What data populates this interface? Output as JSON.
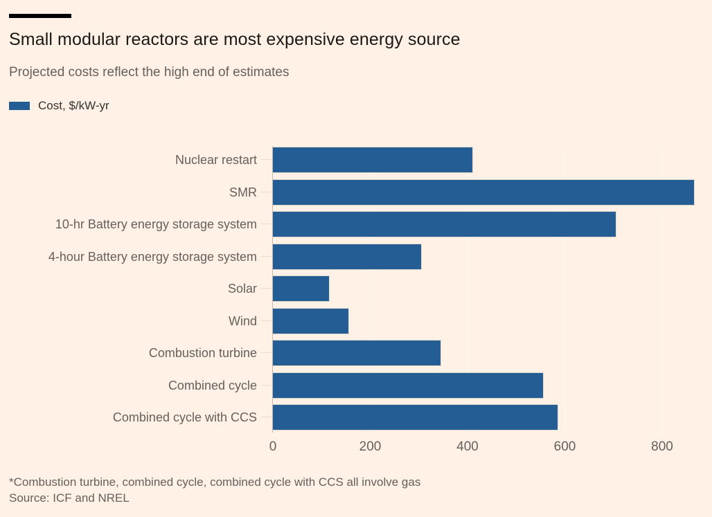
{
  "header": {
    "title": "Small modular reactors are most expensive energy source",
    "subtitle": "Projected costs reflect the high end of estimates"
  },
  "legend": {
    "label": "Cost, $/kW-yr"
  },
  "chart_data": {
    "type": "bar",
    "orientation": "horizontal",
    "title": "Small modular reactors are most expensive energy source",
    "subtitle": "Projected costs reflect the high end of estimates",
    "series_name": "Cost, $/kW-yr",
    "categories": [
      "Nuclear restart",
      "SMR",
      "10-hr Battery energy storage system",
      "4-hour Battery energy storage system",
      "Solar",
      "Wind",
      "Combustion turbine",
      "Combined cycle",
      "Combined cycle with CCS"
    ],
    "values": [
      410,
      865,
      705,
      305,
      115,
      155,
      345,
      555,
      585
    ],
    "xlabel": "Cost, $/kW-yr",
    "xticks": [
      0,
      200,
      400,
      600,
      800
    ],
    "xlim": [
      0,
      884
    ],
    "grid": "vertical-light",
    "legend_position": "top-left"
  },
  "footer": {
    "footnote": "*Combustion turbine, combined cycle, combined cycle with CCS all involve gas",
    "source": "Source: ICF and NREL"
  },
  "colors": {
    "background": "#FFF1E5",
    "bar": "#235D94",
    "title_text": "#1A1817",
    "muted_text": "#66605C",
    "legend_text": "#33302E",
    "baseline": "#C3BAB0",
    "gridline": "#FFF9F2"
  }
}
